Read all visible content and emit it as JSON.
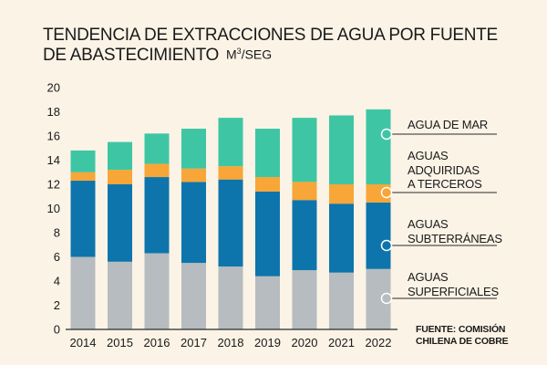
{
  "title_line1": "TENDENCIA DE EXTRACCIONES DE AGUA POR FUENTE",
  "title_line2": "DE ABASTECIMIENTO",
  "unit_label": "M",
  "unit_sup": "3",
  "unit_suffix": "/SEG",
  "source_line1": "FUENTE: COMISIÓN",
  "source_line2": "CHILENA DE COBRE",
  "colors": {
    "superficiales": "#b6bcbf",
    "subterraneas": "#0d75ab",
    "terceros": "#f7a637",
    "mar": "#3ec6a4",
    "axis": "#2a2a2a",
    "grid": "#c9c2b6"
  },
  "chart_data": {
    "type": "bar",
    "stacked": true,
    "categories": [
      "2014",
      "2015",
      "2016",
      "2017",
      "2018",
      "2019",
      "2020",
      "2021",
      "2022"
    ],
    "series": [
      {
        "name": "AGUAS SUPERFICIALES",
        "values": [
          6.0,
          5.6,
          6.3,
          5.5,
          5.2,
          4.4,
          4.9,
          4.7,
          5.0
        ]
      },
      {
        "name": "AGUAS SUBTERRÁNEAS",
        "values": [
          6.3,
          6.4,
          6.3,
          6.7,
          7.2,
          7.0,
          5.8,
          5.7,
          5.5
        ]
      },
      {
        "name": "AGUAS ADQUIRIDAS A TERCEROS",
        "values": [
          0.7,
          1.2,
          1.1,
          1.1,
          1.1,
          1.2,
          1.5,
          1.6,
          1.5
        ]
      },
      {
        "name": "AGUA DE MAR",
        "values": [
          1.8,
          2.3,
          2.5,
          3.3,
          4.0,
          4.0,
          5.3,
          5.7,
          6.2
        ]
      }
    ],
    "ylim": [
      0,
      20
    ],
    "yticks": [
      0,
      2,
      4,
      6,
      8,
      10,
      12,
      14,
      16,
      18,
      20
    ],
    "legend_lines": [
      [
        "AGUA DE MAR"
      ],
      [
        "AGUAS",
        "ADQUIRIDAS",
        "A TERCEROS"
      ],
      [
        "AGUAS",
        "SUBTERRÁNEAS"
      ],
      [
        "AGUAS",
        "SUPERFICIALES"
      ]
    ],
    "grid": false,
    "legend_position": "right"
  }
}
